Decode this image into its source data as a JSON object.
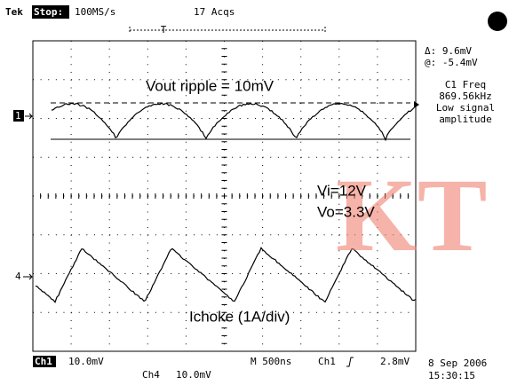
{
  "header": {
    "brand": "Tek",
    "status": "Stop:",
    "rate": "100MS/s",
    "acqs": "17 Acqs",
    "trigger": "T"
  },
  "cursor": {
    "delta": "Δ: 9.6mV",
    "at": "@: -5.4mV"
  },
  "measure": {
    "name": "C1 Freq",
    "value": "869.56kHz",
    "note1": "Low signal",
    "note2": "amplitude"
  },
  "annotations": {
    "ripple": "Vout ripple = 10mV",
    "vi": "Vi=12V",
    "vo": "Vo=3.3V",
    "ichoke": "Ichoke (1A/div)",
    "watermark": "KT"
  },
  "markers": {
    "ch1": "1",
    "ch4": "4"
  },
  "footer": {
    "ch1": "Ch1",
    "ch1_scale": "10.0mV",
    "ch4": "Ch4",
    "ch4_scale": "10.0mV",
    "timebase": "M 500ns",
    "trig_src": "Ch1",
    "trig_level": "2.8mV",
    "date": "8 Sep 2006",
    "time": "15:30:15"
  }
}
